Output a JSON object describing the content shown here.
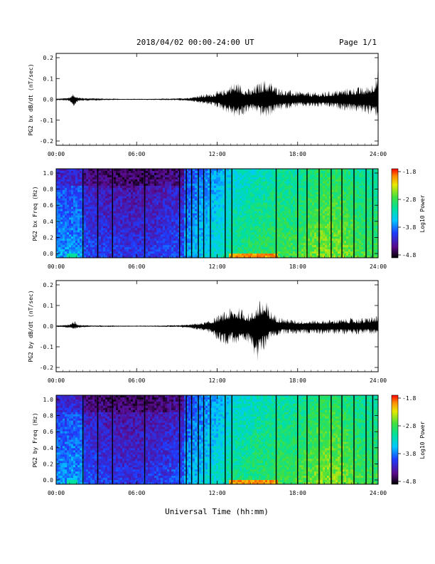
{
  "header": {
    "date_range": "2018/04/02  00:00-24:00 UT",
    "page": "Page 1/1"
  },
  "xaxis": {
    "label": "Universal Time (hh:mm)",
    "ticks": [
      "00:00",
      "06:00",
      "12:00",
      "18:00",
      "24:00"
    ],
    "range_hours": [
      0,
      24
    ]
  },
  "colormap": "rainbow (black-purple-blue-cyan-green-yellow-red)",
  "chart_data": [
    {
      "type": "line",
      "ylabel": "PG2 bx dB/dt (nT/sec)",
      "ylim": [
        -0.2,
        0.2
      ],
      "yticks": [
        "0.2",
        "0.1",
        "0.0",
        "-0.1",
        "-0.2"
      ],
      "envelope": {
        "x_hours": [
          0,
          0.5,
          1.0,
          1.3,
          1.6,
          2,
          3,
          4,
          5,
          6,
          7,
          8,
          9,
          10,
          10.5,
          11,
          11.5,
          12,
          12.5,
          13,
          13.5,
          14,
          14.5,
          15,
          15.5,
          16,
          16.5,
          17,
          18,
          19,
          20,
          21,
          22,
          23,
          23.5,
          24
        ],
        "upper": [
          0.004,
          0.006,
          0.012,
          0.03,
          0.012,
          0.008,
          0.006,
          0.004,
          0.003,
          0.003,
          0.003,
          0.004,
          0.005,
          0.01,
          0.02,
          0.025,
          0.03,
          0.04,
          0.05,
          0.08,
          0.09,
          0.06,
          0.05,
          0.08,
          0.1,
          0.09,
          0.06,
          0.05,
          0.04,
          0.035,
          0.035,
          0.05,
          0.06,
          0.06,
          0.08,
          0.14
        ],
        "lower": [
          -0.004,
          -0.006,
          -0.01,
          -0.04,
          -0.01,
          -0.008,
          -0.006,
          -0.004,
          -0.003,
          -0.003,
          -0.003,
          -0.004,
          -0.005,
          -0.01,
          -0.02,
          -0.025,
          -0.03,
          -0.04,
          -0.06,
          -0.08,
          -0.1,
          -0.08,
          -0.06,
          -0.07,
          -0.1,
          -0.08,
          -0.06,
          -0.05,
          -0.04,
          -0.04,
          -0.04,
          -0.05,
          -0.06,
          -0.07,
          -0.08,
          -0.09
        ]
      }
    },
    {
      "type": "heatmap",
      "ylabel": "PG2 bx Freq (Hz)",
      "ylim": [
        0.0,
        1.0
      ],
      "yticks": [
        "1.0",
        "0.8",
        "0.6",
        "0.4",
        "0.2",
        "0.0"
      ],
      "colorbar": {
        "label": "Log10 Power",
        "range": [
          -4.8,
          -1.8
        ],
        "ticks": [
          "-1.8",
          "-2.8",
          "-3.8",
          "-4.8"
        ]
      },
      "gap_lines_hours": [
        2.0,
        3.1,
        4.2,
        6.6,
        9.2,
        9.7,
        10.1,
        10.6,
        11.0,
        11.5,
        12.6,
        13.1,
        16.4,
        18.0,
        18.7,
        19.6,
        20.5,
        21.3,
        22.2,
        23.1,
        23.6
      ],
      "low_freq_hot_band_hours": [
        12.8,
        16.5
      ]
    },
    {
      "type": "line",
      "ylabel": "PG2 by dB/dt (nT/sec)",
      "ylim": [
        -0.2,
        0.2
      ],
      "yticks": [
        "0.2",
        "0.1",
        "0.0",
        "-0.1",
        "-0.2"
      ],
      "envelope": {
        "x_hours": [
          0,
          0.5,
          1.0,
          1.3,
          1.6,
          2,
          3,
          4,
          5,
          6,
          7,
          8,
          9,
          10,
          10.5,
          11,
          11.5,
          12,
          12.5,
          13,
          13.5,
          14,
          14.5,
          15,
          15.5,
          16,
          16.5,
          17,
          18,
          19,
          20,
          21,
          22,
          23,
          23.5,
          24
        ],
        "upper": [
          0.004,
          0.006,
          0.01,
          0.03,
          0.01,
          0.006,
          0.004,
          0.004,
          0.003,
          0.003,
          0.003,
          0.004,
          0.005,
          0.01,
          0.015,
          0.02,
          0.03,
          0.05,
          0.07,
          0.09,
          0.1,
          0.08,
          0.06,
          0.12,
          0.14,
          0.08,
          0.05,
          0.04,
          0.03,
          0.03,
          0.03,
          0.035,
          0.04,
          0.04,
          0.05,
          0.05
        ],
        "lower": [
          -0.004,
          -0.006,
          -0.01,
          -0.02,
          -0.01,
          -0.006,
          -0.004,
          -0.004,
          -0.003,
          -0.003,
          -0.003,
          -0.004,
          -0.005,
          -0.01,
          -0.02,
          -0.025,
          -0.04,
          -0.07,
          -0.1,
          -0.08,
          -0.1,
          -0.1,
          -0.08,
          -0.2,
          -0.12,
          -0.06,
          -0.05,
          -0.04,
          -0.04,
          -0.04,
          -0.04,
          -0.04,
          -0.04,
          -0.04,
          -0.04,
          -0.05
        ]
      }
    },
    {
      "type": "heatmap",
      "ylabel": "PG2 by Freq (Hz)",
      "ylim": [
        0.0,
        1.0
      ],
      "yticks": [
        "1.0",
        "0.8",
        "0.6",
        "0.4",
        "0.2",
        "0.0"
      ],
      "colorbar": {
        "label": "Log10 Power",
        "range": [
          -4.8,
          -1.8
        ],
        "ticks": [
          "-1.8",
          "-2.8",
          "-3.8",
          "-4.8"
        ]
      },
      "gap_lines_hours": [
        2.0,
        3.1,
        4.2,
        6.6,
        9.2,
        9.7,
        10.1,
        10.6,
        11.0,
        11.5,
        12.6,
        13.1,
        16.4,
        18.0,
        18.7,
        19.6,
        20.5,
        21.3,
        22.2,
        23.1,
        23.6
      ],
      "low_freq_hot_band_hours": [
        12.8,
        16.5
      ]
    }
  ]
}
